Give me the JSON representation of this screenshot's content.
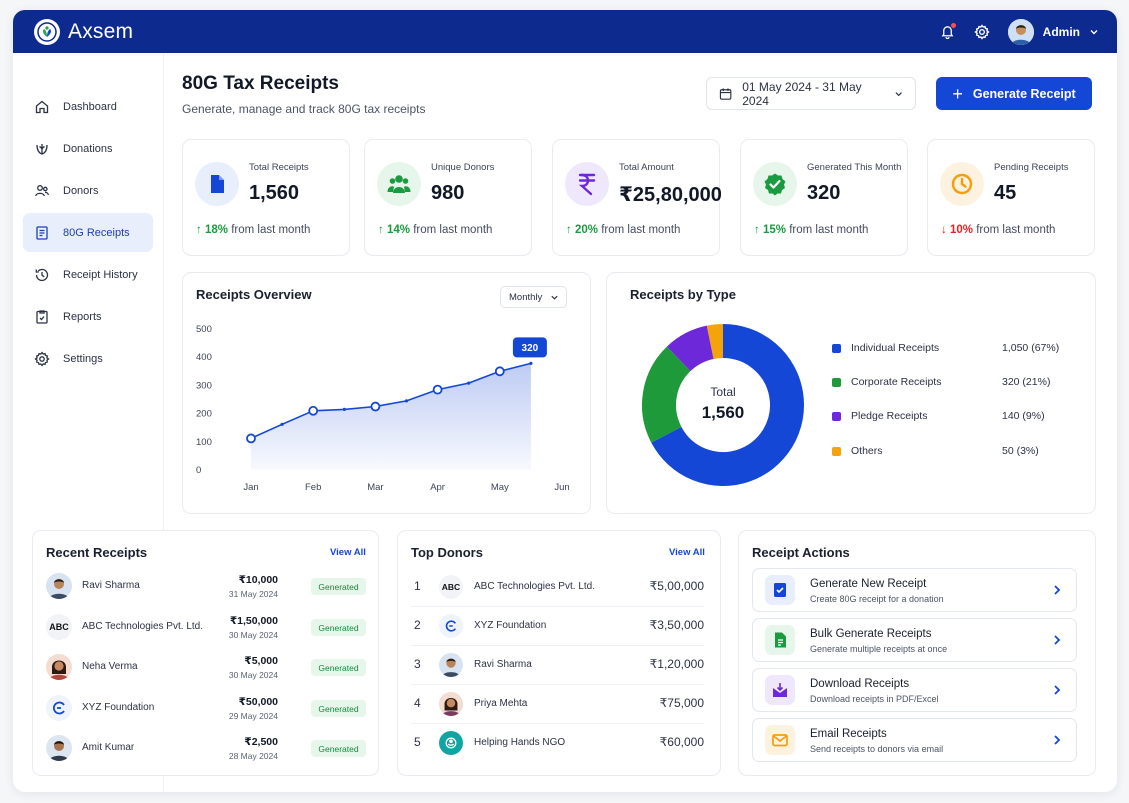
{
  "app": {
    "name": "Axsem"
  },
  "header": {
    "user_name": "Admin"
  },
  "sidebar": {
    "items": [
      {
        "label": "Dashboard",
        "icon": "home-icon"
      },
      {
        "label": "Donations",
        "icon": "donation-hand-icon"
      },
      {
        "label": "Donors",
        "icon": "users-icon"
      },
      {
        "label": "80G Receipts",
        "icon": "receipt-icon",
        "active": true
      },
      {
        "label": "Receipt History",
        "icon": "history-icon"
      },
      {
        "label": "Reports",
        "icon": "report-icon"
      },
      {
        "label": "Settings",
        "icon": "gear-icon"
      }
    ]
  },
  "page": {
    "title": "80G Tax Receipts",
    "subtitle": "Generate, manage and track 80G tax receipts",
    "date_range": "01 May 2024 - 31 May 2024",
    "generate_button": "Generate Receipt"
  },
  "stats": [
    {
      "label": "Total Receipts",
      "value": "1,560",
      "pct": "18%",
      "direction": "up",
      "suffix": "from last month",
      "color": "#1447d6",
      "icon": "document-icon"
    },
    {
      "label": "Unique Donors",
      "value": "980",
      "pct": "14%",
      "direction": "up",
      "suffix": "from last month",
      "color": "#1a9b3f",
      "icon": "users-icon"
    },
    {
      "label": "Total Amount",
      "value": "₹25,80,000",
      "pct": "20%",
      "direction": "up",
      "suffix": "from last month",
      "color": "#6d28d9",
      "icon": "rupee-icon"
    },
    {
      "label": "Generated This Month",
      "value": "320",
      "pct": "15%",
      "direction": "up",
      "suffix": "from last month",
      "color": "#1a9b3f",
      "icon": "check-badge-icon"
    },
    {
      "label": "Pending Receipts",
      "value": "45",
      "pct": "10%",
      "direction": "down",
      "suffix": "from last month",
      "color": "#f59e0b",
      "icon": "clock-icon"
    }
  ],
  "overview": {
    "title": "Receipts Overview",
    "period": "Monthly",
    "chart_data": {
      "type": "area",
      "categories": [
        "Jan",
        "Feb",
        "Mar",
        "Apr",
        "May",
        "Jun"
      ],
      "y_ticks": [
        "0",
        "100",
        "200",
        "300",
        "400",
        "500"
      ],
      "ylim": [
        0,
        500
      ],
      "x": [
        1,
        1.5,
        2,
        2.5,
        3,
        3.5,
        4,
        4.5,
        5,
        5.5
      ],
      "values": [
        112,
        162,
        210,
        215,
        225,
        245,
        285,
        308,
        350,
        378
      ],
      "marker_x": [
        1,
        2,
        3,
        4,
        5
      ],
      "highlight": {
        "label": "320"
      },
      "color": "#1447d6"
    }
  },
  "by_type": {
    "title": "Receipts by Type",
    "total_label": "Total",
    "total_value": "1,560",
    "chart_data": {
      "type": "pie",
      "labels": [
        "Individual Receipts",
        "Corporate Receipts",
        "Pledge Receipts",
        "Others"
      ],
      "values": [
        1050,
        320,
        140,
        50
      ],
      "display": [
        "1,050 (67%)",
        "320 (21%)",
        "140 (9%)",
        "50 (3%)"
      ],
      "colors": [
        "#1447d6",
        "#1f9a3a",
        "#6d28d9",
        "#f5a30b"
      ]
    }
  },
  "recent": {
    "title": "Recent Receipts",
    "view_all": "View All",
    "rows": [
      {
        "name": "Ravi Sharma",
        "amount": "₹10,000",
        "date": "31 May 2024",
        "status": "Generated",
        "avatar": "person"
      },
      {
        "name": "ABC Technologies Pvt. Ltd.",
        "amount": "₹1,50,000",
        "date": "30 May 2024",
        "status": "Generated",
        "avatar": "logo-abc",
        "logo_text": "ABC"
      },
      {
        "name": "Neha Verma",
        "amount": "₹5,000",
        "date": "30 May 2024",
        "status": "Generated",
        "avatar": "person-f"
      },
      {
        "name": "XYZ Foundation",
        "amount": "₹50,000",
        "date": "29 May 2024",
        "status": "Generated",
        "avatar": "logo-xyz"
      },
      {
        "name": "Amit Kumar",
        "amount": "₹2,500",
        "date": "28 May 2024",
        "status": "Generated",
        "avatar": "person"
      }
    ]
  },
  "top_donors": {
    "title": "Top Donors",
    "view_all": "View All",
    "rows": [
      {
        "rank": "1",
        "name": "ABC Technologies Pvt. Ltd.",
        "amount": "₹5,00,000",
        "logo": "logo-abc",
        "logo_text": "ABC"
      },
      {
        "rank": "2",
        "name": "XYZ Foundation",
        "amount": "₹3,50,000",
        "logo": "logo-xyz"
      },
      {
        "rank": "3",
        "name": "Ravi Sharma",
        "amount": "₹1,20,000",
        "logo": "person"
      },
      {
        "rank": "4",
        "name": "Priya Mehta",
        "amount": "₹75,000",
        "logo": "person-f"
      },
      {
        "rank": "5",
        "name": "Helping Hands NGO",
        "amount": "₹60,000",
        "logo": "logo-ngo"
      }
    ]
  },
  "actions": {
    "title": "Receipt Actions",
    "items": [
      {
        "title": "Generate New Receipt",
        "subtitle": "Create 80G receipt for a donation",
        "color": "#1447d6",
        "bg": "#e8eefc",
        "icon": "receipt-add-icon"
      },
      {
        "title": "Bulk Generate Receipts",
        "subtitle": "Generate multiple receipts at once",
        "color": "#1a9b3f",
        "bg": "#e6f6ea",
        "icon": "bulk-file-icon"
      },
      {
        "title": "Download Receipts",
        "subtitle": "Download receipts in PDF/Excel",
        "color": "#6d28d9",
        "bg": "#efe8fc",
        "icon": "download-icon"
      },
      {
        "title": "Email Receipts",
        "subtitle": "Send receipts to donors via email",
        "color": "#f59e0b",
        "bg": "#fdf2e0",
        "icon": "email-icon"
      }
    ]
  }
}
